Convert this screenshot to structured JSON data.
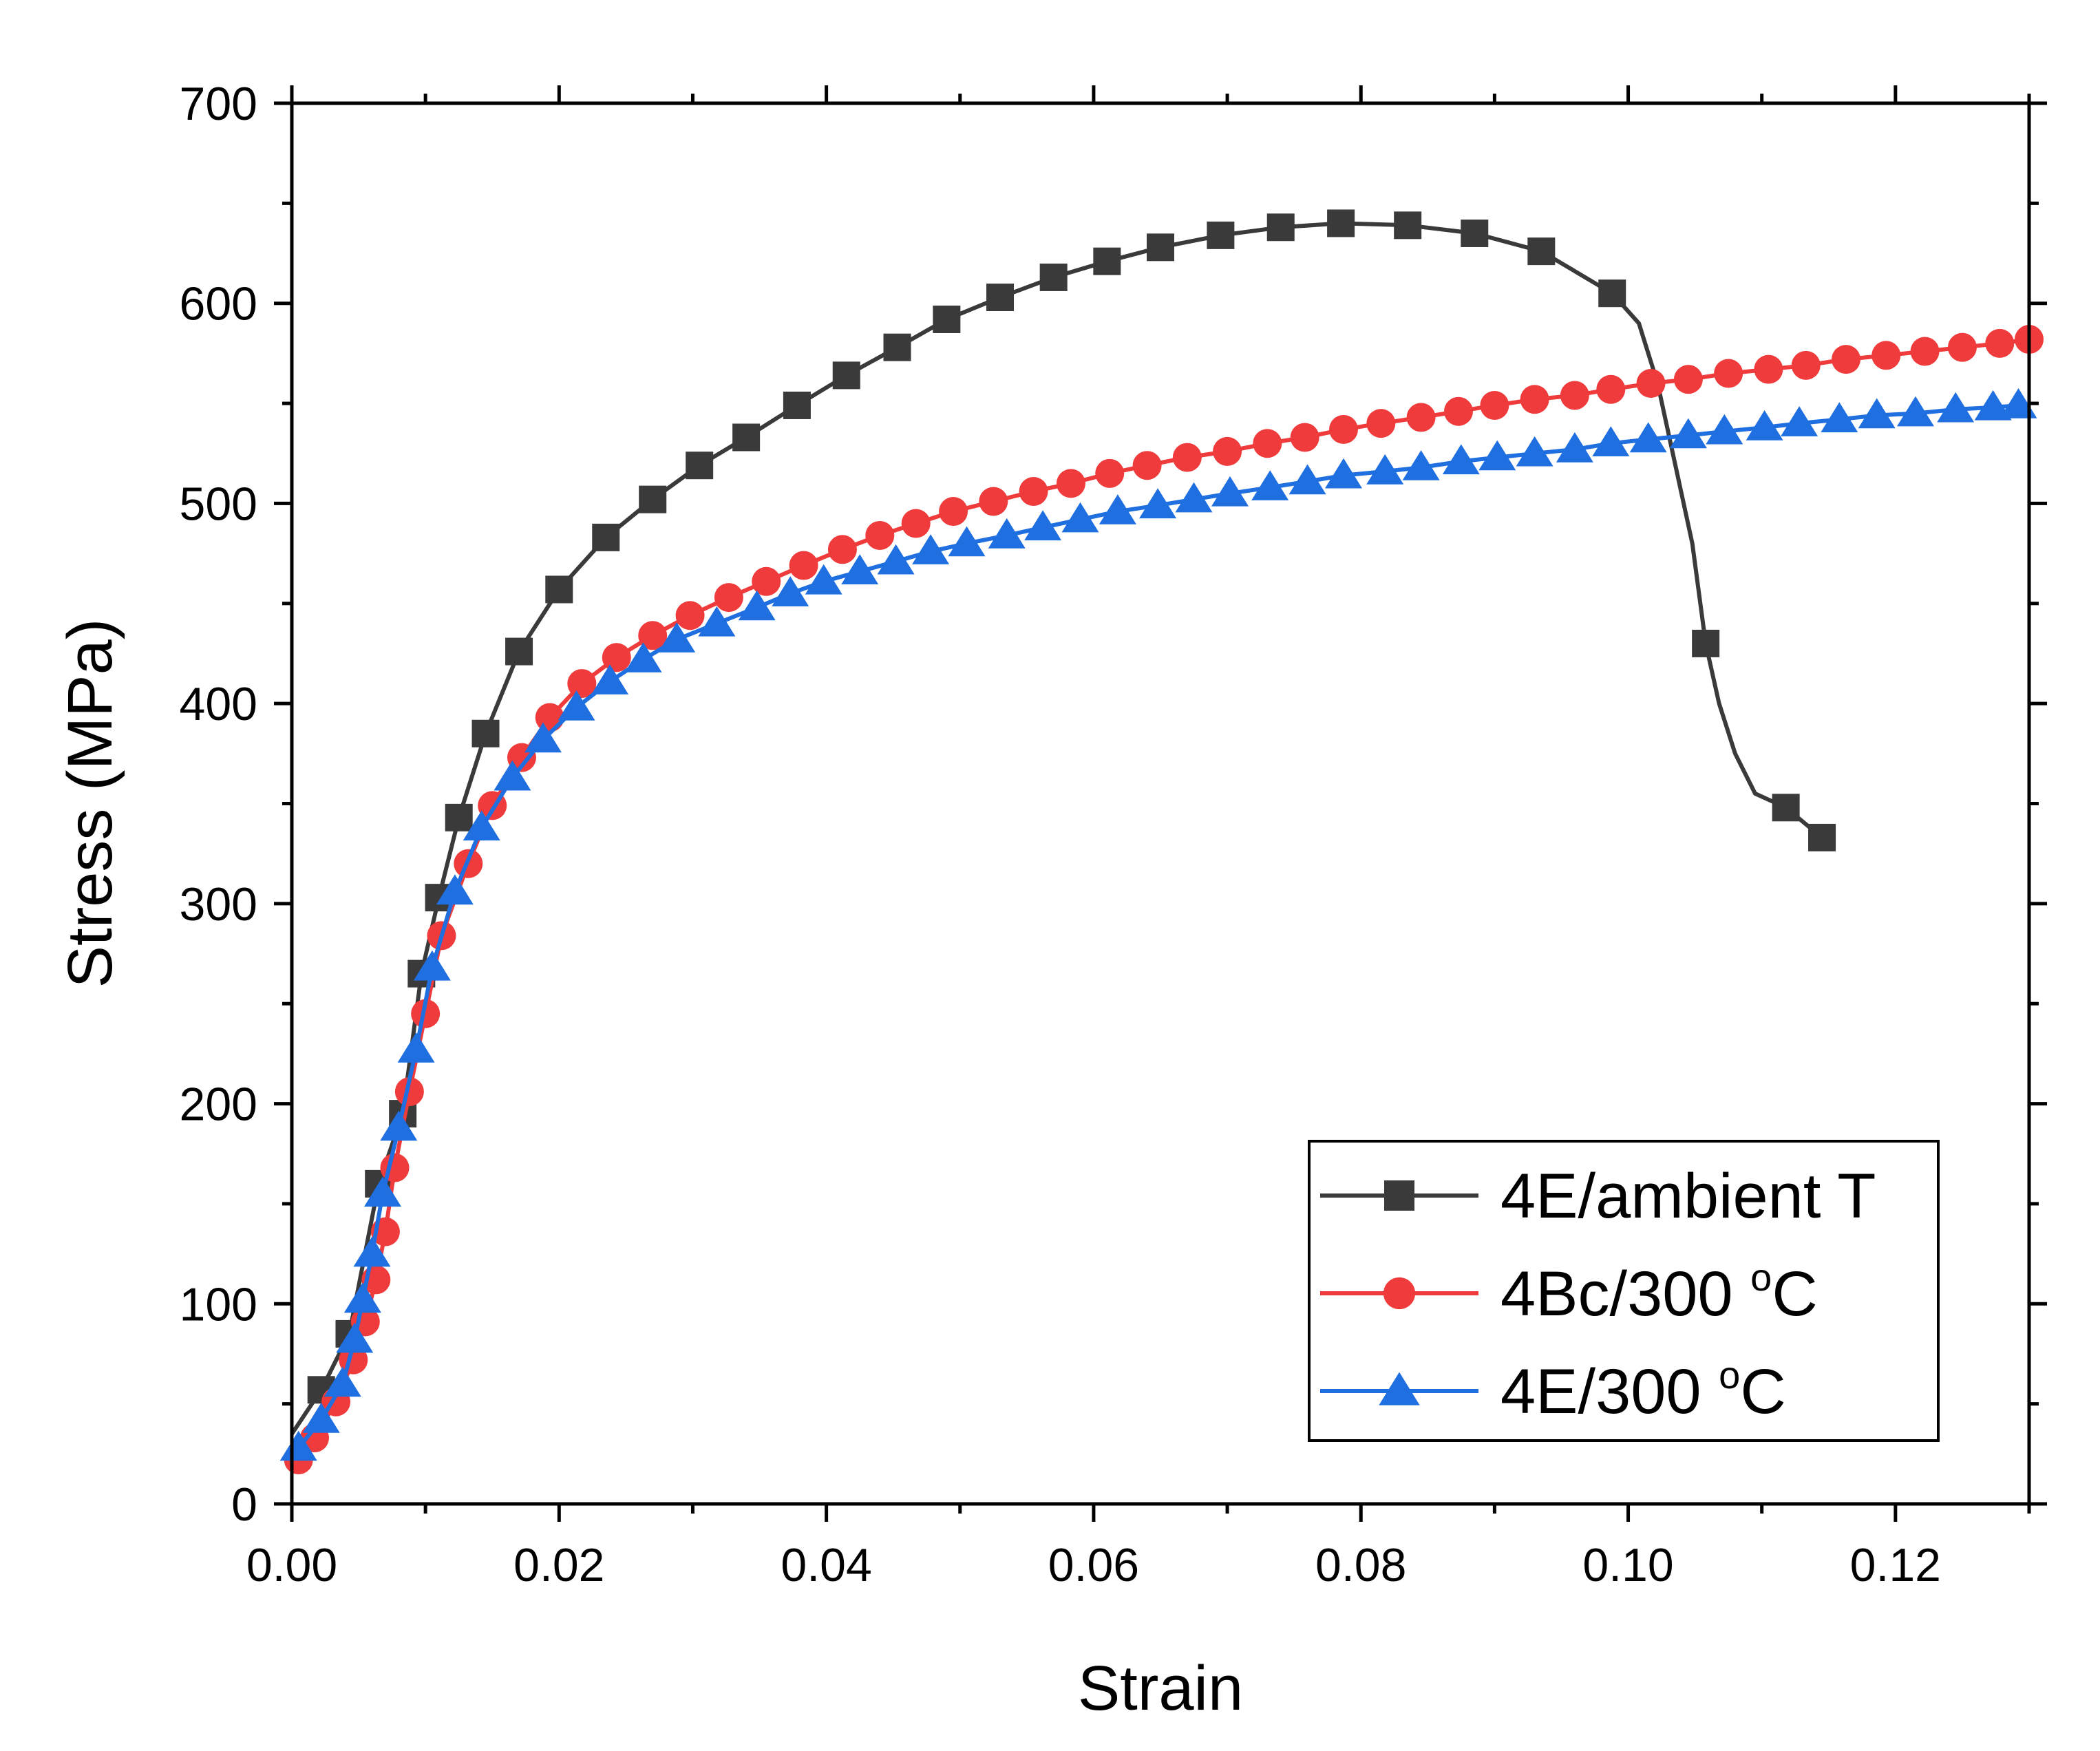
{
  "chart_data": {
    "type": "line",
    "title": "",
    "xlabel": "Strain",
    "ylabel": "Stress (MPa)",
    "xlim": [
      0,
      0.13
    ],
    "ylim": [
      0,
      700
    ],
    "x_ticks": [
      0.0,
      0.02,
      0.04,
      0.06,
      0.08,
      0.1,
      0.12
    ],
    "x_tick_labels": [
      "0.00",
      "0.02",
      "0.04",
      "0.06",
      "0.08",
      "0.10",
      "0.12"
    ],
    "y_ticks": [
      0,
      100,
      200,
      300,
      400,
      500,
      600,
      700
    ],
    "y_tick_labels": [
      "0",
      "100",
      "200",
      "300",
      "400",
      "500",
      "600",
      "700"
    ],
    "grid": false,
    "legend_position": "bottom-right",
    "series": [
      {
        "name": "4E/ambient T",
        "label_main": "4E/ambient T",
        "label_sup": "",
        "label_tail": "",
        "color": "#3a3a3a",
        "marker": "square",
        "x": [
          0.0,
          0.0022,
          0.0043,
          0.0065,
          0.0083,
          0.0097,
          0.011,
          0.0125,
          0.0145,
          0.017,
          0.02,
          0.0235,
          0.027,
          0.0305,
          0.034,
          0.0378,
          0.0415,
          0.0453,
          0.049,
          0.053,
          0.057,
          0.061,
          0.065,
          0.0695,
          0.074,
          0.0785,
          0.0835,
          0.0885,
          0.0935,
          0.0988,
          0.1008,
          0.1022,
          0.1035,
          0.1048,
          0.1058,
          0.1068,
          0.108,
          0.1095,
          0.1118,
          0.1145
        ],
        "y": [
          35,
          57,
          85,
          160,
          195,
          265,
          303,
          343,
          385,
          426,
          457,
          483,
          502,
          519,
          533,
          549,
          564,
          578,
          592,
          603,
          613,
          621,
          628,
          634,
          638,
          640,
          639,
          635,
          626,
          605,
          590,
          560,
          520,
          480,
          430,
          400,
          375,
          355,
          348,
          333
        ],
        "marker_x": [
          0.0022,
          0.0043,
          0.0065,
          0.0083,
          0.0097,
          0.011,
          0.0125,
          0.0145,
          0.017,
          0.02,
          0.0235,
          0.027,
          0.0305,
          0.034,
          0.0378,
          0.0415,
          0.0453,
          0.049,
          0.053,
          0.057,
          0.061,
          0.065,
          0.0695,
          0.074,
          0.0785,
          0.0835,
          0.0885,
          0.0935,
          0.0988,
          0.1058,
          0.1118,
          0.1145
        ],
        "marker_y": [
          57,
          85,
          160,
          195,
          265,
          303,
          343,
          385,
          426,
          457,
          483,
          502,
          519,
          533,
          549,
          564,
          578,
          592,
          603,
          613,
          621,
          628,
          634,
          638,
          640,
          639,
          635,
          626,
          605,
          430,
          348,
          333
        ]
      },
      {
        "name": "4Bc/300 °C",
        "label_main": "4Bc/300 ",
        "label_sup": "o",
        "label_tail": "C",
        "color": "#ef3b3b",
        "marker": "circle",
        "x": [
          0.0005,
          0.0017,
          0.0033,
          0.0046,
          0.0055,
          0.0063,
          0.007,
          0.0077,
          0.0088,
          0.01,
          0.0112,
          0.0132,
          0.015,
          0.0172,
          0.0193,
          0.0217,
          0.0243,
          0.027,
          0.0298,
          0.0327,
          0.0355,
          0.0383,
          0.0412,
          0.044,
          0.0467,
          0.0495,
          0.0525,
          0.0555,
          0.0583,
          0.0612,
          0.064,
          0.067,
          0.07,
          0.073,
          0.0758,
          0.0787,
          0.0815,
          0.0845,
          0.0873,
          0.09,
          0.093,
          0.096,
          0.0987,
          0.1017,
          0.1045,
          0.1075,
          0.1105,
          0.1133,
          0.1163,
          0.1193,
          0.1222,
          0.125,
          0.1278,
          0.13
        ],
        "y": [
          22,
          33,
          51,
          72,
          91,
          112,
          136,
          168,
          206,
          245,
          284,
          320,
          349,
          373,
          393,
          410,
          423,
          434,
          444,
          453,
          461,
          469,
          477,
          484,
          490,
          496,
          501,
          506,
          510,
          515,
          519,
          523,
          526,
          530,
          533,
          537,
          540,
          543,
          546,
          549,
          552,
          554,
          557,
          560,
          562,
          565,
          567,
          569,
          572,
          574,
          576,
          578,
          580,
          582
        ],
        "marker_x": [
          0.0005,
          0.0017,
          0.0033,
          0.0046,
          0.0055,
          0.0063,
          0.007,
          0.0077,
          0.0088,
          0.01,
          0.0112,
          0.0132,
          0.015,
          0.0172,
          0.0193,
          0.0217,
          0.0243,
          0.027,
          0.0298,
          0.0327,
          0.0355,
          0.0383,
          0.0412,
          0.044,
          0.0467,
          0.0495,
          0.0525,
          0.0555,
          0.0583,
          0.0612,
          0.064,
          0.067,
          0.07,
          0.073,
          0.0758,
          0.0787,
          0.0815,
          0.0845,
          0.0873,
          0.09,
          0.093,
          0.096,
          0.0987,
          0.1017,
          0.1045,
          0.1075,
          0.1105,
          0.1133,
          0.1163,
          0.1193,
          0.1222,
          0.125,
          0.1278,
          0.13
        ],
        "marker_y": [
          22,
          33,
          51,
          72,
          91,
          112,
          136,
          168,
          206,
          245,
          284,
          320,
          349,
          373,
          393,
          410,
          423,
          434,
          444,
          453,
          461,
          469,
          477,
          484,
          490,
          496,
          501,
          506,
          510,
          515,
          519,
          523,
          526,
          530,
          533,
          537,
          540,
          543,
          546,
          549,
          552,
          554,
          557,
          560,
          562,
          565,
          567,
          569,
          572,
          574,
          576,
          578,
          580,
          582
        ]
      },
      {
        "name": "4E/300 °C",
        "label_main": "4E/300 ",
        "label_sup": "o",
        "label_tail": "C",
        "color": "#1f6fe0",
        "marker": "triangle",
        "x": [
          0.0005,
          0.0022,
          0.0038,
          0.0047,
          0.0053,
          0.006,
          0.0068,
          0.008,
          0.0093,
          0.0105,
          0.0122,
          0.0142,
          0.0165,
          0.0188,
          0.0213,
          0.0238,
          0.0263,
          0.0288,
          0.0318,
          0.0348,
          0.0373,
          0.0398,
          0.0425,
          0.0452,
          0.0478,
          0.0505,
          0.0535,
          0.0562,
          0.059,
          0.0618,
          0.0648,
          0.0675,
          0.0702,
          0.0732,
          0.076,
          0.0787,
          0.0818,
          0.0845,
          0.0875,
          0.0902,
          0.093,
          0.096,
          0.0987,
          0.1015,
          0.1045,
          0.1072,
          0.1102,
          0.1128,
          0.1158,
          0.1186,
          0.1215,
          0.1245,
          0.1273,
          0.1292
        ],
        "y": [
          28,
          42,
          60,
          82,
          102,
          125,
          155,
          188,
          227,
          268,
          306,
          338,
          363,
          382,
          398,
          411,
          422,
          432,
          440,
          448,
          455,
          461,
          466,
          471,
          476,
          480,
          484,
          488,
          492,
          496,
          499,
          502,
          505,
          508,
          511,
          514,
          516,
          518,
          521,
          523,
          525,
          527,
          530,
          532,
          534,
          536,
          538,
          540,
          542,
          544,
          545,
          547,
          548,
          549
        ],
        "marker_x": [
          0.0005,
          0.0022,
          0.0038,
          0.0047,
          0.0053,
          0.006,
          0.0068,
          0.008,
          0.0093,
          0.0105,
          0.0122,
          0.0142,
          0.0165,
          0.0188,
          0.0213,
          0.0238,
          0.0263,
          0.0288,
          0.0318,
          0.0348,
          0.0373,
          0.0398,
          0.0425,
          0.0452,
          0.0478,
          0.0505,
          0.0535,
          0.0562,
          0.059,
          0.0618,
          0.0648,
          0.0675,
          0.0702,
          0.0732,
          0.076,
          0.0787,
          0.0818,
          0.0845,
          0.0875,
          0.0902,
          0.093,
          0.096,
          0.0987,
          0.1015,
          0.1045,
          0.1072,
          0.1102,
          0.1128,
          0.1158,
          0.1186,
          0.1215,
          0.1245,
          0.1273,
          0.1292
        ],
        "marker_y": [
          28,
          42,
          60,
          82,
          102,
          125,
          155,
          188,
          227,
          268,
          306,
          338,
          363,
          382,
          398,
          411,
          422,
          432,
          440,
          448,
          455,
          461,
          466,
          471,
          476,
          480,
          484,
          488,
          492,
          496,
          499,
          502,
          505,
          508,
          511,
          514,
          516,
          518,
          521,
          523,
          525,
          527,
          530,
          532,
          534,
          536,
          538,
          540,
          542,
          544,
          545,
          547,
          548,
          549
        ]
      }
    ]
  }
}
